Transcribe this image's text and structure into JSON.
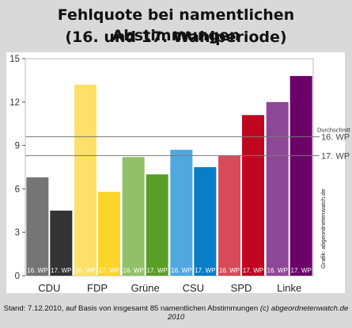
{
  "header": {
    "title_line1": "Fehlquote bei namentlichen Abstimmungen",
    "title_line2": "(16. und 17. Wahlperiode)"
  },
  "footer": {
    "text": "Stand: 7.12.2010, auf Basis von insgesamt 85 namentlichen Abstimmungen",
    "site": "(c) abgeordnetenwatch.de 2010"
  },
  "chart_data": {
    "type": "bar",
    "title": "Fehlquote bei namentlichen Abstimmungen",
    "subtitle": "(16. und 17. Wahlperiode)",
    "categories": [
      "CDU",
      "FDP",
      "Grüne",
      "CSU",
      "SPD",
      "Linke"
    ],
    "series": [
      {
        "name": "16. WP",
        "values": [
          6.8,
          13.2,
          8.2,
          8.7,
          8.3,
          12.0
        ]
      },
      {
        "name": "17. WP",
        "values": [
          4.5,
          5.8,
          7.0,
          7.5,
          11.1,
          13.8
        ]
      }
    ],
    "bar_colors": {
      "16. WP": [
        "#757575",
        "#fde068",
        "#92c067",
        "#4fa8df",
        "#d94a58",
        "#8e4797"
      ],
      "17. WP": [
        "#333333",
        "#fdd52a",
        "#5a9d28",
        "#0a7dc8",
        "#c0061f",
        "#6b0069"
      ]
    },
    "ylim": [
      0,
      15
    ],
    "yticks": [
      0,
      3,
      6,
      9,
      12,
      15
    ],
    "xlabel": "",
    "ylabel": "",
    "grid": false,
    "reference_lines": [
      {
        "label": "16. WP",
        "value": 9.6
      },
      {
        "label": "17. WP",
        "value": 8.3
      }
    ],
    "reference_title": "Durchschnitt",
    "watermark": "Grafik: abgeordnetenwatch.de"
  }
}
